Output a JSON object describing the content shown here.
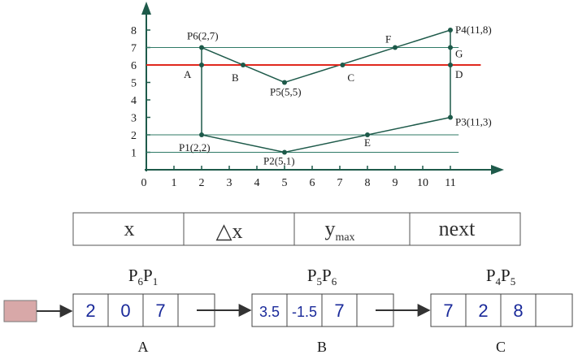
{
  "diagram": {
    "x_ticks": [
      "0",
      "1",
      "2",
      "3",
      "4",
      "5",
      "6",
      "7",
      "8",
      "9",
      "10",
      "11"
    ],
    "y_ticks": [
      "1",
      "2",
      "3",
      "4",
      "5",
      "6",
      "7",
      "8"
    ],
    "points": [
      {
        "id": "P1",
        "label": "P1(2,2)",
        "x": 2,
        "y": 2
      },
      {
        "id": "P2",
        "label": "P2(5,1)",
        "x": 5,
        "y": 1
      },
      {
        "id": "P3",
        "label": "P3(11,3)",
        "x": 11,
        "y": 3
      },
      {
        "id": "P4",
        "label": "P4(11,8)",
        "x": 11,
        "y": 8
      },
      {
        "id": "P5",
        "label": "P5(5,5)",
        "x": 5,
        "y": 5
      },
      {
        "id": "P6",
        "label": "P6(2,7)",
        "x": 2,
        "y": 7
      }
    ],
    "intersections": [
      {
        "label": "A",
        "x": 2,
        "y": 6
      },
      {
        "label": "B",
        "x": 3.5,
        "y": 6
      },
      {
        "label": "C",
        "x": 7.1,
        "y": 6
      },
      {
        "label": "D",
        "x": 11,
        "y": 6
      },
      {
        "label": "E",
        "x": 8,
        "y": 2
      },
      {
        "label": "F",
        "x": 9,
        "y": 7
      },
      {
        "label": "G",
        "x": 11,
        "y": 7
      }
    ],
    "scan_line_y": 6,
    "reference_lines_y": [
      1,
      2,
      7
    ],
    "colors": {
      "polygon": "#1e5a4a",
      "scan_line": "#e0281e",
      "reference": "#2f7a66",
      "axis": "#1e5a4a",
      "cell_text": "#1a2a9a",
      "head_pointer": "#d8a8a8"
    }
  },
  "header_table": {
    "cells": [
      "x",
      "△x",
      "y",
      "next"
    ],
    "ymax_sub": "max"
  },
  "list": {
    "nodes": [
      {
        "title": "P",
        "sub1": "6",
        "title2": "P",
        "sub2": "1",
        "values": [
          "2",
          "0",
          "7"
        ],
        "caption": "A"
      },
      {
        "title": "P",
        "sub1": "5",
        "title2": "P",
        "sub2": "6",
        "values": [
          "3.5",
          "-1.5",
          "7"
        ],
        "caption": "B"
      },
      {
        "title": "P",
        "sub1": "4",
        "title2": "P",
        "sub2": "5",
        "values": [
          "7",
          "2",
          "8"
        ],
        "caption": "C"
      }
    ]
  }
}
